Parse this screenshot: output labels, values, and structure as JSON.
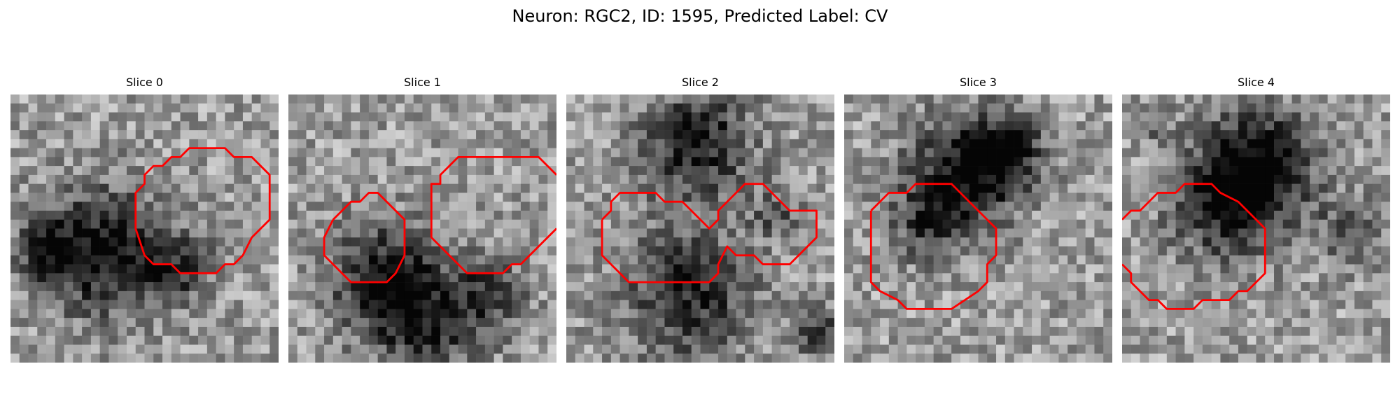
{
  "figure": {
    "title": "Neuron: RGC2, ID: 1595, Predicted Label: CV",
    "contour_color": "#ff0000",
    "colormap": "gray",
    "panels": [
      {
        "title": "Slice 0"
      },
      {
        "title": "Slice 1"
      },
      {
        "title": "Slice 2"
      },
      {
        "title": "Slice 3"
      },
      {
        "title": "Slice 4"
      }
    ]
  }
}
